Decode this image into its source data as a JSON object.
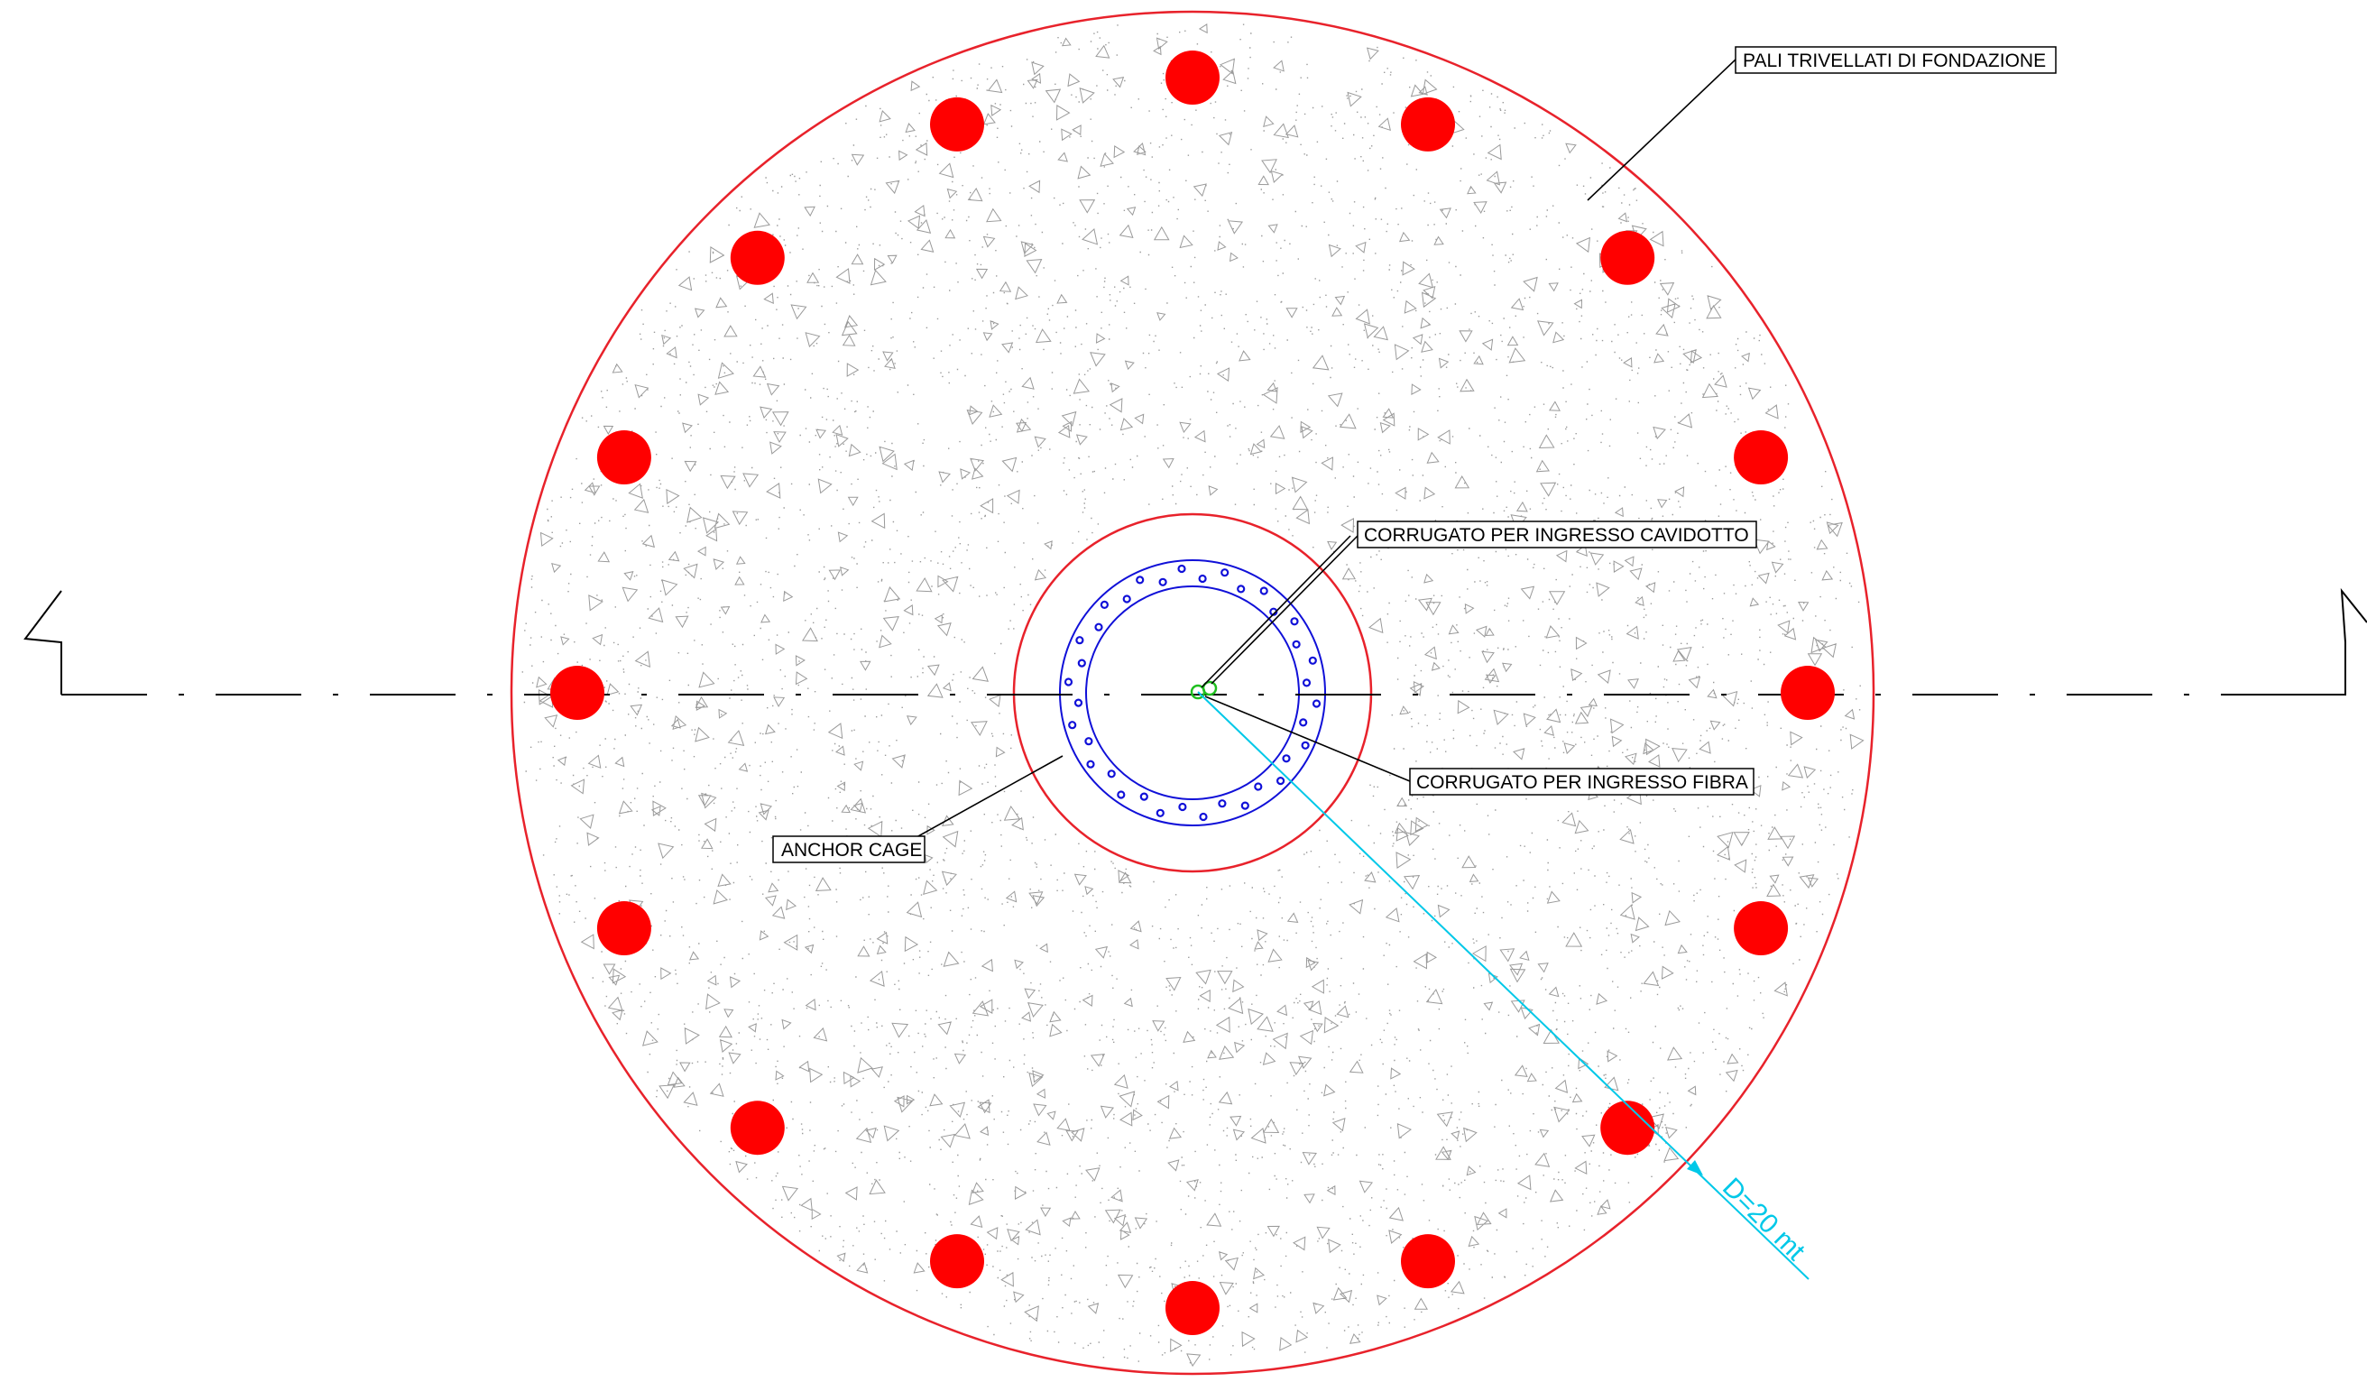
{
  "labels": {
    "piles": "PALI TRIVELLATI DI FONDAZIONE",
    "cavidotto": "CORRUGATO PER INGRESSO CAVIDOTTO",
    "fibra": "CORRUGATO PER INGRESSO FIBRA",
    "anchor_cage": "ANCHOR CAGE",
    "diameter": "D=20 mt"
  },
  "colors": {
    "foundation_outline": "#e8222b",
    "pile_fill": "#ff0000",
    "anchor_cage": "#1010d8",
    "dimension": "#00c8e8",
    "conduit": "#1fbf1f",
    "centerline": "#000000",
    "concrete_hatch": "#9a9a9a"
  },
  "foundation": {
    "diameter_m": 20,
    "pile_count": 16,
    "anchor_bolt_count": 36
  }
}
